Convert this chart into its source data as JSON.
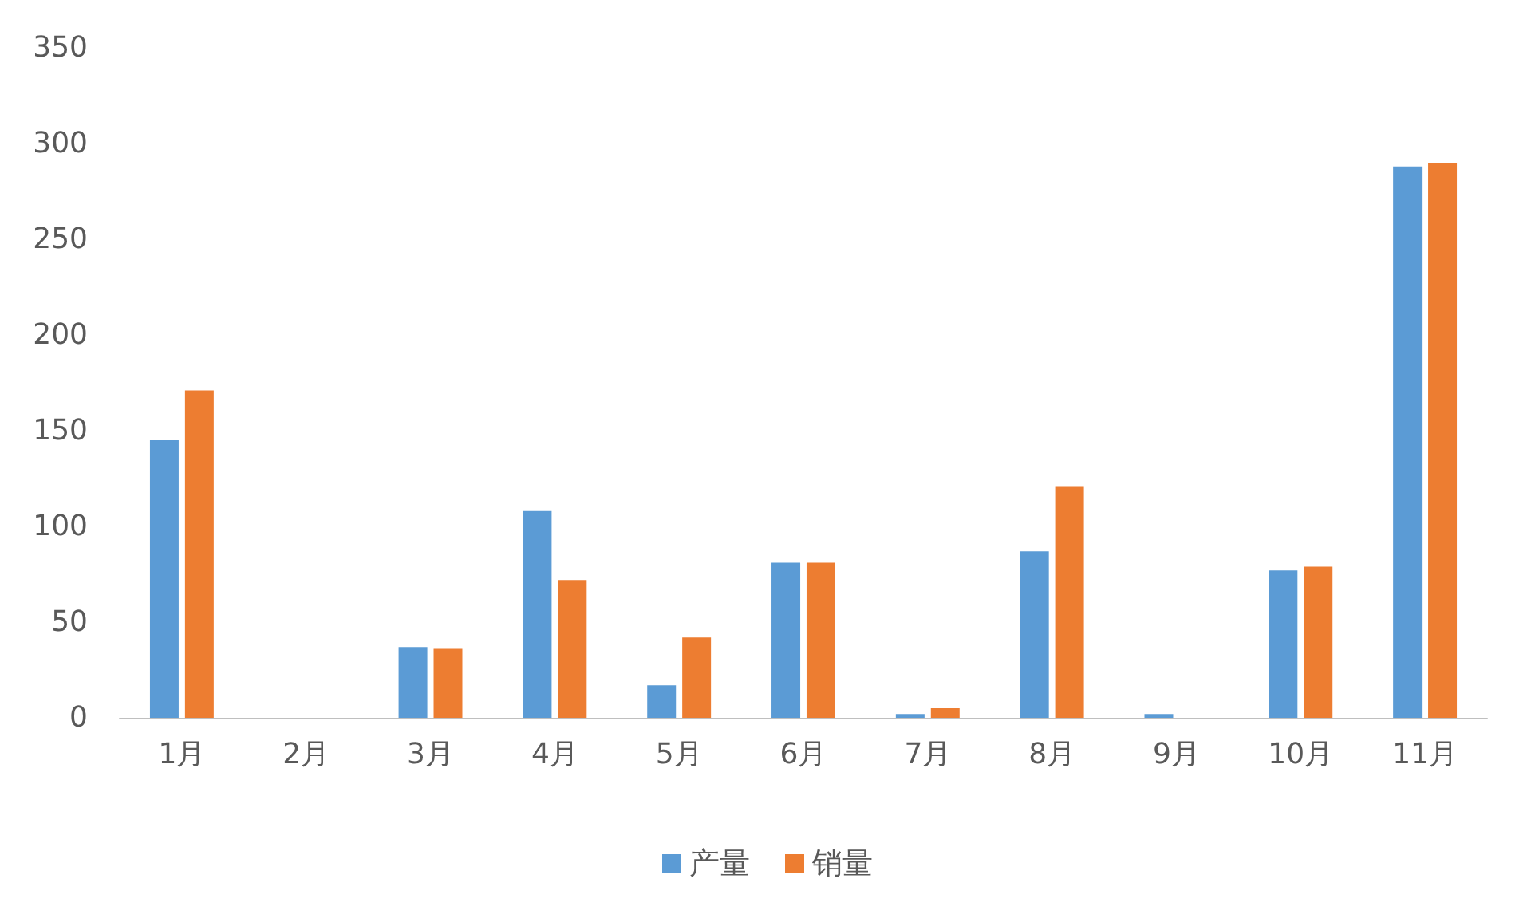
{
  "chart_data": {
    "type": "bar",
    "categories": [
      "1月",
      "2月",
      "3月",
      "4月",
      "5月",
      "6月",
      "7月",
      "8月",
      "9月",
      "10月",
      "11月"
    ],
    "series": [
      {
        "name": "产量",
        "color": "#5b9bd5",
        "values": [
          145,
          0,
          37,
          108,
          17,
          81,
          2,
          87,
          2,
          77,
          288
        ]
      },
      {
        "name": "销量",
        "color": "#ed7d31",
        "values": [
          171,
          0,
          36,
          72,
          42,
          81,
          5,
          121,
          0,
          79,
          290
        ]
      }
    ],
    "ylim": [
      0,
      350
    ],
    "yticks": [
      0,
      50,
      100,
      150,
      200,
      250,
      300,
      350
    ],
    "grid": false,
    "legend": "bottom"
  }
}
